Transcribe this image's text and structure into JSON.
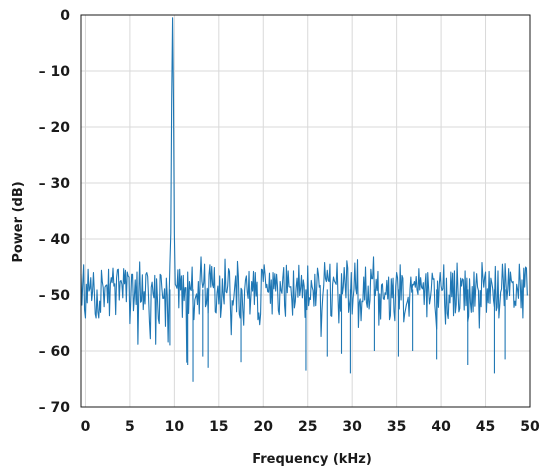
{
  "chart_data": {
    "type": "line",
    "title": "",
    "xlabel": "Frequency (kHz)",
    "ylabel": "Power (dB)",
    "xlim": [
      -0.5,
      50
    ],
    "ylim": [
      -70,
      0
    ],
    "x_ticks": [
      0,
      5,
      10,
      15,
      20,
      25,
      30,
      35,
      40,
      45,
      50
    ],
    "x_tick_labels": [
      "0",
      "5",
      "10",
      "15",
      "20",
      "25",
      "30",
      "35",
      "40",
      "45",
      "50"
    ],
    "y_ticks": [
      0,
      -10,
      -20,
      -30,
      -40,
      -50,
      -60,
      -70
    ],
    "y_tick_labels": [
      "0",
      "– 10",
      "– 20",
      "– 30",
      "– 40",
      "– 50",
      "– 60",
      "– 70"
    ],
    "grid": true,
    "legend": "none",
    "series": [
      {
        "color": "#1f77b4",
        "x_start": -0.5,
        "x_step": 0.1,
        "values": [
          -46.3,
          -51.8,
          -47.9,
          -44.6,
          -52.7,
          -54.1,
          -48.1,
          -51.4,
          -45.4,
          -49.3,
          -48.9,
          -46.9,
          -51.0,
          -49.4,
          -46.0,
          -49.5,
          -53.4,
          -54.1,
          -49.1,
          -53.0,
          -54.1,
          -51.1,
          -53.1,
          -45.6,
          -47.7,
          -48.7,
          -52.1,
          -48.6,
          -48.3,
          -48.2,
          -51.4,
          -45.4,
          -53.7,
          -48.1,
          -46.9,
          -47.8,
          -45.2,
          -48.4,
          -48.0,
          -53.5,
          -47.0,
          -45.5,
          -45.4,
          -50.9,
          -47.6,
          -47.4,
          -48.1,
          -50.5,
          -45.3,
          -48.0,
          -45.6,
          -51.2,
          -45.9,
          -46.6,
          -46.8,
          -55.1,
          -50.9,
          -46.3,
          -46.3,
          -52.8,
          -50.4,
          -47.3,
          -51.7,
          -45.9,
          -58.8,
          -49.6,
          -44.1,
          -51.3,
          -51.1,
          -46.4,
          -52.6,
          -49.4,
          -51.6,
          -46.3,
          -46.0,
          -46.7,
          -50.5,
          -54.8,
          -57.8,
          -48.6,
          -47.7,
          -49.7,
          -50.5,
          -46.5,
          -58.8,
          -47.1,
          -50.7,
          -54.3,
          -55.1,
          -46.3,
          -46.5,
          -48.9,
          -50.6,
          -50.6,
          -48.9,
          -55.6,
          -47.0,
          -50.1,
          -58.4,
          -51.2,
          -44.5,
          -39.0,
          -15.0,
          -0.5,
          -15.0,
          -39.0,
          -48.1,
          -48.4,
          -48.8,
          -45.5,
          -52.3,
          -45.4,
          -49.1,
          -46.6,
          -54.0,
          -46.5,
          -51.0,
          -48.7,
          -48.7,
          -62.0,
          -45.9,
          -53.3,
          -47.6,
          -48.9,
          -49.2,
          -45.0,
          -51.6,
          -54.4,
          -50.9,
          -50.3,
          -49.8,
          -51.7,
          -47.6,
          -53.4,
          -47.0,
          -43.2,
          -47.5,
          -48.7,
          -47.9,
          -44.5,
          -52.1,
          -51.6,
          -48.8,
          -53.2,
          -46.4,
          -44.6,
          -48.6,
          -44.9,
          -48.2,
          -48.7,
          -45.1,
          -53.0,
          -53.2,
          -49.6,
          -48.4,
          -51.6,
          -46.6,
          -54.0,
          -52.1,
          -47.1,
          -50.1,
          -51.6,
          -43.6,
          -49.4,
          -49.6,
          -48.4,
          -45.3,
          -45.8,
          -51.9,
          -57.1,
          -51.0,
          -51.8,
          -50.3,
          -48.3,
          -46.6,
          -53.0,
          -44.0,
          -46.7,
          -53.4,
          -54.1,
          -48.8,
          -49.1,
          -52.7,
          -55.4,
          -49.2,
          -47.3,
          -46.6,
          -49.5,
          -50.6,
          -45.8,
          -53.4,
          -50.5,
          -47.6,
          -49.3,
          -45.8,
          -51.7,
          -46.0,
          -50.2,
          -47.7,
          -54.4,
          -53.2,
          -55.3,
          -53.4,
          -45.4,
          -45.5,
          -47.6,
          -44.6,
          -46.3,
          -48.7,
          -48.1,
          -49.4,
          -49.5,
          -46.1,
          -51.5,
          -47.3,
          -53.4,
          -46.0,
          -48.9,
          -46.2,
          -49.3,
          -46.3,
          -48.5,
          -52.8,
          -53.5,
          -47.6,
          -49.2,
          -49.7,
          -46.9,
          -45.1,
          -51.9,
          -53.8,
          -44.7,
          -49.6,
          -45.7,
          -48.5,
          -48.6,
          -48.5,
          -50.6,
          -53.6,
          -45.7,
          -52.3,
          -51.2,
          -48.6,
          -47.0,
          -50.4,
          -44.7,
          -50.1,
          -48.9,
          -46.5,
          -50.5,
          -47.3,
          -48.4,
          -54.0,
          -49.1,
          -52.6,
          -44.8,
          -51.9,
          -50.5,
          -50.8,
          -47.4,
          -48.6,
          -49.2,
          -52.0,
          -46.3,
          -51.9,
          -49.1,
          -45.2,
          -46.3,
          -48.6,
          -48.3,
          -57.4,
          -52.8,
          -50.1,
          -48.3,
          -44.2,
          -47.1,
          -47.6,
          -45.6,
          -47.4,
          -47.6,
          -44.5,
          -53.7,
          -53.8,
          -48.1,
          -46.8,
          -47.5,
          -47.8,
          -48.1,
          -44.3,
          -50.0,
          -55.0,
          -49.9,
          -52.9,
          -46.2,
          -49.8,
          -48.6,
          -45.1,
          -47.9,
          -50.5,
          -43.9,
          -45.2,
          -53.1,
          -51.6,
          -50.5,
          -46.0,
          -53.4,
          -50.6,
          -49.0,
          -44.3,
          -48.8,
          -49.8,
          -43.7,
          -55.8,
          -51.3,
          -50.7,
          -54.6,
          -51.1,
          -51.2,
          -46.8,
          -50.9,
          -45.0,
          -51.3,
          -52.2,
          -48.4,
          -52.5,
          -51.0,
          -45.4,
          -47.1,
          -47.1,
          -43.2,
          -50.0,
          -50.1,
          -47.2,
          -49.2,
          -45.8,
          -55.4,
          -49.8,
          -54.3,
          -48.2,
          -48.0,
          -50.6,
          -50.8,
          -49.6,
          -49.9,
          -47.4,
          -50.7,
          -46.8,
          -54.4,
          -53.7,
          -47.1,
          -50.5,
          -47.0,
          -52.9,
          -54.6,
          -48.4,
          -46.0,
          -46.9,
          -50.2,
          -52.5,
          -44.6,
          -50.9,
          -46.5,
          -47.0,
          -54.8,
          -53.4,
          -52.6,
          -51.7,
          -51.2,
          -50.4,
          -53.8,
          -49.1,
          -46.8,
          -49.5,
          -48.1,
          -48.2,
          -47.6,
          -48.6,
          -46.7,
          -49.1,
          -49.9,
          -45.3,
          -49.1,
          -46.9,
          -48.6,
          -48.9,
          -47.8,
          -51.7,
          -48.0,
          -46.2,
          -53.9,
          -46.0,
          -48.9,
          -51.6,
          -50.5,
          -49.0,
          -46.1,
          -47.2,
          -47.1,
          -51.9,
          -53.8,
          -56.1,
          -47.5,
          -52.2,
          -48.1,
          -46.0,
          -48.4,
          -49.2,
          -48.9,
          -44.6,
          -51.7,
          -55.2,
          -47.0,
          -53.3,
          -54.2,
          -50.0,
          -51.4,
          -45.9,
          -50.3,
          -46.1,
          -53.7,
          -45.7,
          -53.2,
          -51.7,
          -44.3,
          -49.3,
          -53.0,
          -52.4,
          -47.0,
          -48.4,
          -47.1,
          -47.3,
          -52.7,
          -45.7,
          -51.9,
          -47.0,
          -54.7,
          -53.8,
          -47.1,
          -51.4,
          -53.1,
          -48.5,
          -53.0,
          -45.9,
          -52.0,
          -48.5,
          -46.2,
          -48.6,
          -49.2,
          -55.9,
          -49.2,
          -52.1,
          -44.2,
          -46.8,
          -48.6,
          -46.8,
          -45.9,
          -53.1,
          -48.9,
          -51.4,
          -45.8,
          -51.5,
          -47.0,
          -47.8,
          -48.8,
          -51.0,
          -52.1,
          -44.9,
          -52.8,
          -52.2,
          -45.7,
          -54.1,
          -51.8,
          -49.5,
          -48.9,
          -44.5,
          -47.4,
          -51.9,
          -44.4,
          -47.8,
          -50.8,
          -49.0,
          -45.3,
          -50.1,
          -45.9,
          -47.4,
          -47.8,
          -47.6,
          -52.2,
          -51.1,
          -51.9,
          -48.1,
          -49.0,
          -50.6,
          -44.5,
          -47.6,
          -52.3,
          -47.3,
          -54.1,
          -45.2,
          -48.6,
          -45.0,
          -45.2,
          -50.1
        ]
      }
    ],
    "dips": [
      [
        9.5,
        -59.0
      ],
      [
        11.5,
        -62.5
      ],
      [
        12.1,
        -65.5
      ],
      [
        13.2,
        -61.0
      ],
      [
        13.8,
        -63.0
      ],
      [
        17.5,
        -62.0
      ],
      [
        24.8,
        -63.5
      ],
      [
        27.2,
        -61.0
      ],
      [
        28.8,
        -60.5
      ],
      [
        29.8,
        -64.0
      ],
      [
        32.5,
        -60.0
      ],
      [
        35.2,
        -61.0
      ],
      [
        36.8,
        -60.0
      ],
      [
        39.5,
        -61.5
      ],
      [
        43.0,
        -62.5
      ],
      [
        46.0,
        -64.0
      ],
      [
        47.2,
        -61.5
      ]
    ]
  }
}
